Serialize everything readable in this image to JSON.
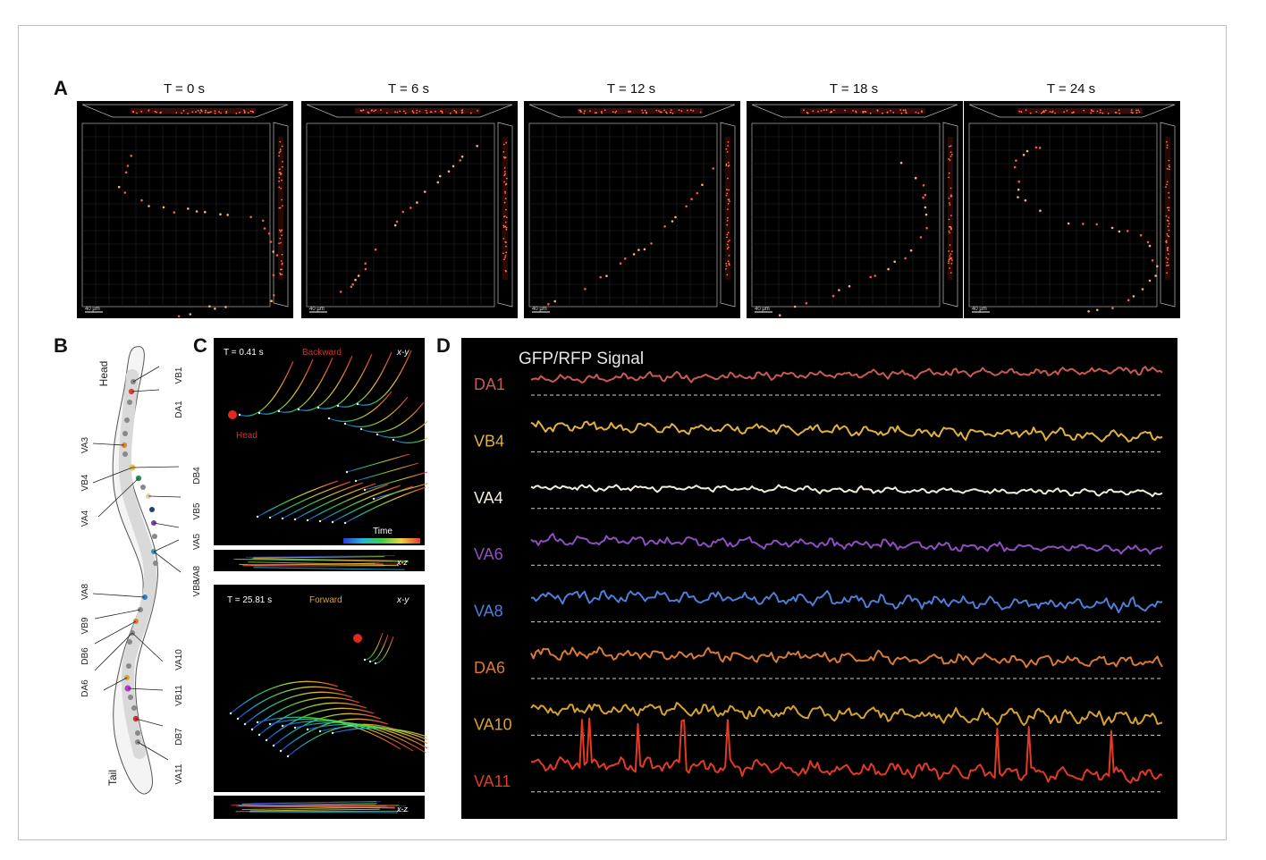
{
  "panel_a": {
    "label": "A",
    "timepoints": [
      "T = 0 s",
      "T = 6 s",
      "T = 12 s",
      "T = 18 s",
      "T = 24 s"
    ],
    "scale_bar": "40 µm"
  },
  "panel_b": {
    "label": "B",
    "head": "Head",
    "tail": "Tail",
    "neurons_right": [
      "VB1",
      "DA1",
      "DB4",
      "VB5",
      "VA5",
      "VB8",
      "VA8",
      "VA10",
      "VB11",
      "DB7",
      "VA11"
    ],
    "neurons_left": [
      "VA3",
      "VB4",
      "VA4",
      "VA8",
      "VB9",
      "DB6",
      "DA6"
    ]
  },
  "panel_c": {
    "label": "C",
    "top": {
      "time": "T = 0.41 s",
      "direction": "Backward",
      "plane": "x-y",
      "head": "Head",
      "colorbar": "Time",
      "side_plane": "x-z"
    },
    "bottom": {
      "time": "T = 25.81 s",
      "direction": "Forward",
      "plane": "x-y",
      "side_plane": "x-z"
    }
  },
  "panel_d": {
    "label": "D",
    "title": "GFP/RFP Signal",
    "traces": [
      {
        "name": "DA1",
        "color": "#c95a52"
      },
      {
        "name": "VB4",
        "color": "#e3b23c"
      },
      {
        "name": "VA4",
        "color": "#f2eedc"
      },
      {
        "name": "VA6",
        "color": "#8f4fc2"
      },
      {
        "name": "VA8",
        "color": "#4e7fd6"
      },
      {
        "name": "DA6",
        "color": "#d97a35"
      },
      {
        "name": "VA10",
        "color": "#d6a232"
      },
      {
        "name": "VA11",
        "color": "#e23a25"
      }
    ]
  }
}
